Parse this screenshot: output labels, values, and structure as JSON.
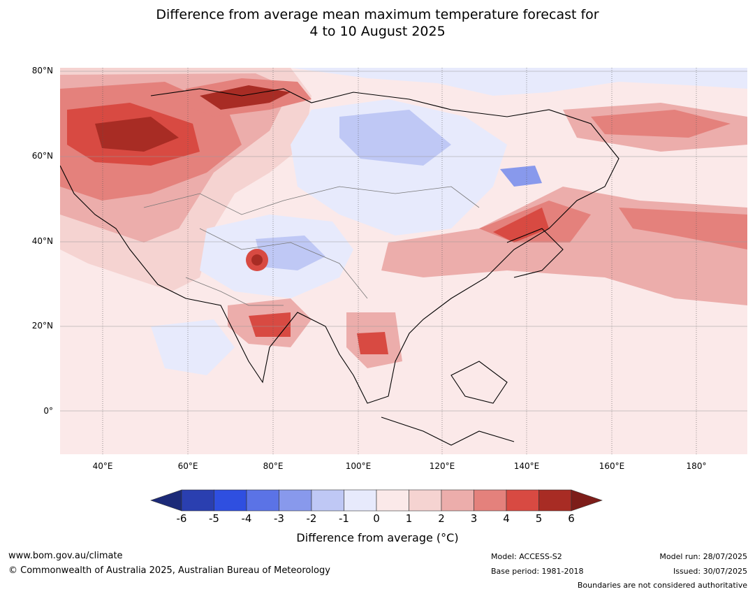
{
  "title": {
    "line1": "Difference from average mean maximum temperature forecast for",
    "line2": "4 to 10 August 2025"
  },
  "map": {
    "lat_labels": [
      "80°N",
      "60°N",
      "40°N",
      "20°N",
      "0°"
    ],
    "lon_labels": [
      "40°E",
      "60°E",
      "80°E",
      "100°E",
      "120°E",
      "140°E",
      "160°E",
      "180°"
    ],
    "extent": {
      "lon": [
        30,
        191
      ],
      "lat": [
        -10,
        80
      ]
    }
  },
  "colorbar": {
    "ticks": [
      "-6",
      "-5",
      "-4",
      "-3",
      "-2",
      "-1",
      "0",
      "1",
      "2",
      "3",
      "4",
      "5",
      "6"
    ],
    "colors": [
      "#1c2a78",
      "#2a3fb0",
      "#2f4fe0",
      "#5b73e6",
      "#8899ec",
      "#bfc8f5",
      "#e7eafc",
      "#fbe9e9",
      "#f5d3d1",
      "#ecadab",
      "#e4817c",
      "#d84a42",
      "#a82c24",
      "#7d1d19"
    ],
    "label": "Difference from average (°C)"
  },
  "footer": {
    "website": "www.bom.gov.au/climate",
    "copyright": "© Commonwealth of Australia 2025, Australian Bureau of Meteorology",
    "model": "Model: ACCESS-S2",
    "base_period": "Base period: 1981-2018",
    "model_run": "Model run: 28/07/2025",
    "issued": "Issued: 30/07/2025",
    "boundaries_note": "Boundaries are not considered authoritative"
  }
}
